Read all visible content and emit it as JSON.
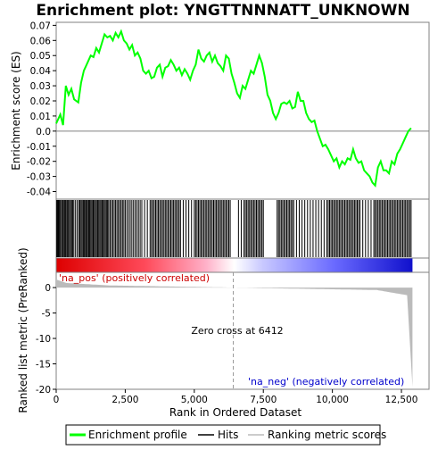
{
  "chart_data": {
    "type": "line",
    "title": "Enrichment plot: YNGTTNNNATT_UNKNOWN",
    "upper_panel": {
      "ylabel": "Enrichment score (ES)",
      "ylim": [
        -0.045,
        0.072
      ],
      "yticks": [
        0.07,
        0.06,
        0.05,
        0.04,
        0.03,
        0.02,
        0.01,
        0.0,
        -0.01,
        -0.02,
        -0.03,
        -0.04
      ],
      "ytick_labels": [
        "0.07",
        "0.06",
        "0.05",
        "0.04",
        "0.03",
        "0.02",
        "0.01",
        "0.0",
        "-0.01",
        "-0.02",
        "-0.03",
        "-0.04"
      ],
      "series": [
        {
          "name": "Enrichment profile",
          "color": "#00ff00",
          "x": [
            0,
            150,
            250,
            350,
            450,
            550,
            650,
            800,
            900,
            1000,
            1100,
            1250,
            1350,
            1450,
            1550,
            1650,
            1750,
            1850,
            1950,
            2050,
            2150,
            2250,
            2350,
            2450,
            2550,
            2650,
            2750,
            2850,
            2950,
            3050,
            3150,
            3250,
            3350,
            3450,
            3550,
            3650,
            3750,
            3850,
            3950,
            4050,
            4150,
            4250,
            4350,
            4450,
            4550,
            4650,
            4750,
            4850,
            4950,
            5050,
            5150,
            5250,
            5350,
            5450,
            5550,
            5650,
            5750,
            5850,
            5950,
            6050,
            6150,
            6250,
            6350,
            6450,
            6550,
            6650,
            6750,
            6850,
            6950,
            7050,
            7150,
            7250,
            7350,
            7450,
            7550,
            7650,
            7750,
            7850,
            7950,
            8050,
            8150,
            8250,
            8350,
            8450,
            8550,
            8650,
            8750,
            8850,
            8950,
            9050,
            9150,
            9250,
            9350,
            9450,
            9550,
            9650,
            9750,
            9850,
            9950,
            10050,
            10150,
            10250,
            10350,
            10450,
            10550,
            10650,
            10750,
            10850,
            10950,
            11050,
            11150,
            11250,
            11350,
            11450,
            11550,
            11650,
            11750,
            11850,
            11950,
            12050,
            12150,
            12250,
            12350,
            12450,
            12550,
            12650,
            12750,
            12850
          ],
          "y": [
            0.005,
            0.011,
            0.004,
            0.03,
            0.024,
            0.028,
            0.021,
            0.019,
            0.032,
            0.04,
            0.044,
            0.05,
            0.049,
            0.055,
            0.052,
            0.058,
            0.064,
            0.062,
            0.063,
            0.06,
            0.065,
            0.062,
            0.066,
            0.06,
            0.058,
            0.054,
            0.057,
            0.05,
            0.052,
            0.048,
            0.04,
            0.038,
            0.04,
            0.035,
            0.036,
            0.042,
            0.044,
            0.036,
            0.042,
            0.043,
            0.047,
            0.044,
            0.04,
            0.042,
            0.037,
            0.041,
            0.038,
            0.034,
            0.04,
            0.044,
            0.054,
            0.048,
            0.046,
            0.05,
            0.052,
            0.046,
            0.05,
            0.045,
            0.043,
            0.04,
            0.05,
            0.048,
            0.038,
            0.032,
            0.025,
            0.022,
            0.03,
            0.028,
            0.034,
            0.04,
            0.038,
            0.044,
            0.05,
            0.045,
            0.036,
            0.024,
            0.02,
            0.012,
            0.008,
            0.012,
            0.018,
            0.019,
            0.018,
            0.02,
            0.015,
            0.016,
            0.026,
            0.02,
            0.02,
            0.012,
            0.008,
            0.006,
            0.007,
            0.0,
            -0.005,
            -0.01,
            -0.009,
            -0.012,
            -0.016,
            -0.02,
            -0.018,
            -0.024,
            -0.02,
            -0.022,
            -0.018,
            -0.019,
            -0.012,
            -0.018,
            -0.021,
            -0.02,
            -0.026,
            -0.028,
            -0.03,
            -0.034,
            -0.036,
            -0.024,
            -0.02,
            -0.026,
            -0.026,
            -0.028,
            -0.02,
            -0.022,
            -0.015,
            -0.012,
            -0.008,
            -0.004,
            0.0,
            0.002
          ]
        }
      ]
    },
    "hits_panel": {
      "legend_name": "Hits",
      "color": "#000000",
      "positions": [
        20,
        50,
        80,
        110,
        150,
        190,
        230,
        260,
        300,
        330,
        360,
        400,
        440,
        480,
        520,
        560,
        600,
        640,
        700,
        760,
        820,
        860,
        900,
        940,
        980,
        1010,
        1040,
        1080,
        1120,
        1160,
        1190,
        1220,
        1260,
        1300,
        1340,
        1380,
        1420,
        1460,
        1500,
        1540,
        1580,
        1620,
        1660,
        1700,
        1740,
        1780,
        1820,
        1860,
        1900,
        1950,
        2000,
        2050,
        2100,
        2150,
        2200,
        2250,
        2300,
        2350,
        2400,
        2450,
        2500,
        2560,
        2620,
        2680,
        2740,
        2800,
        2860,
        2920,
        2980,
        3040,
        3100,
        3200,
        3300,
        3400,
        3450,
        3500,
        3550,
        3600,
        3650,
        3700,
        3750,
        3800,
        3850,
        3900,
        3950,
        4000,
        4050,
        4100,
        4150,
        4200,
        4250,
        4300,
        4350,
        4400,
        4450,
        4500,
        4600,
        4700,
        4800,
        4900,
        5000,
        5050,
        5100,
        5150,
        5200,
        5250,
        5300,
        5350,
        5400,
        5450,
        5500,
        5550,
        5600,
        5650,
        5700,
        5750,
        5800,
        5850,
        5900,
        5950,
        6000,
        6050,
        6100,
        6150,
        6200,
        6250,
        6300,
        6600,
        6700,
        6800,
        6850,
        6900,
        6950,
        7000,
        7050,
        7100,
        7150,
        7200,
        7250,
        7300,
        7350,
        7400,
        7450,
        7500,
        8000,
        8050,
        8100,
        8150,
        8200,
        8250,
        8300,
        8350,
        8400,
        8450,
        8500,
        8550,
        8600,
        8700,
        8800,
        8900,
        9000,
        9100,
        9200,
        9300,
        9400,
        9500,
        9600,
        9700,
        9800,
        9850,
        9900,
        9950,
        10000,
        10050,
        10100,
        10150,
        10200,
        10250,
        10300,
        10350,
        10400,
        10450,
        10500,
        10550,
        10600,
        10650,
        10700,
        10750,
        10800,
        10850,
        10900,
        10950,
        11000,
        11100,
        11200,
        11300,
        11400,
        11500,
        11550,
        11600,
        11650,
        11700,
        11750,
        11800,
        11850,
        11900,
        11950,
        12000,
        12050,
        12100,
        12150,
        12200,
        12250,
        12300,
        12350,
        12400,
        12450,
        12500,
        12550,
        12600,
        12650,
        12700,
        12750,
        12800,
        12850
      ]
    },
    "ranking_panel": {
      "legend_name": "Ranking metric scores",
      "ylabel": "Ranked list metric (PreRanked)",
      "xlabel": "Rank in Ordered Dataset",
      "ylim": [
        -20,
        3
      ],
      "yticks": [
        0,
        -5,
        -10,
        -15,
        -20
      ],
      "ytick_labels": [
        "0",
        "-5",
        "-10",
        "-15",
        "-20"
      ],
      "xlim": [
        0,
        13500
      ],
      "xticks": [
        0,
        2500,
        5000,
        7500,
        10000,
        12500
      ],
      "xtick_labels": [
        "0",
        "2,500",
        "5,000",
        "7,500",
        "10,000",
        "12,500"
      ],
      "n_genes": 12900,
      "zero_cross": 6412,
      "zero_cross_label": "Zero cross at 6412",
      "pos_label": "'na_pos' (positively correlated)",
      "neg_label": "'na_neg' (negatively correlated)",
      "pos_color": "#cc0000",
      "neg_color": "#0000cc"
    },
    "legend": {
      "placement": "bottom",
      "items": [
        {
          "label": "Enrichment profile",
          "color": "#00ff00"
        },
        {
          "label": "Hits",
          "color": "#000000"
        },
        {
          "label": "Ranking metric scores",
          "color": "#bbbbbb"
        }
      ]
    }
  }
}
